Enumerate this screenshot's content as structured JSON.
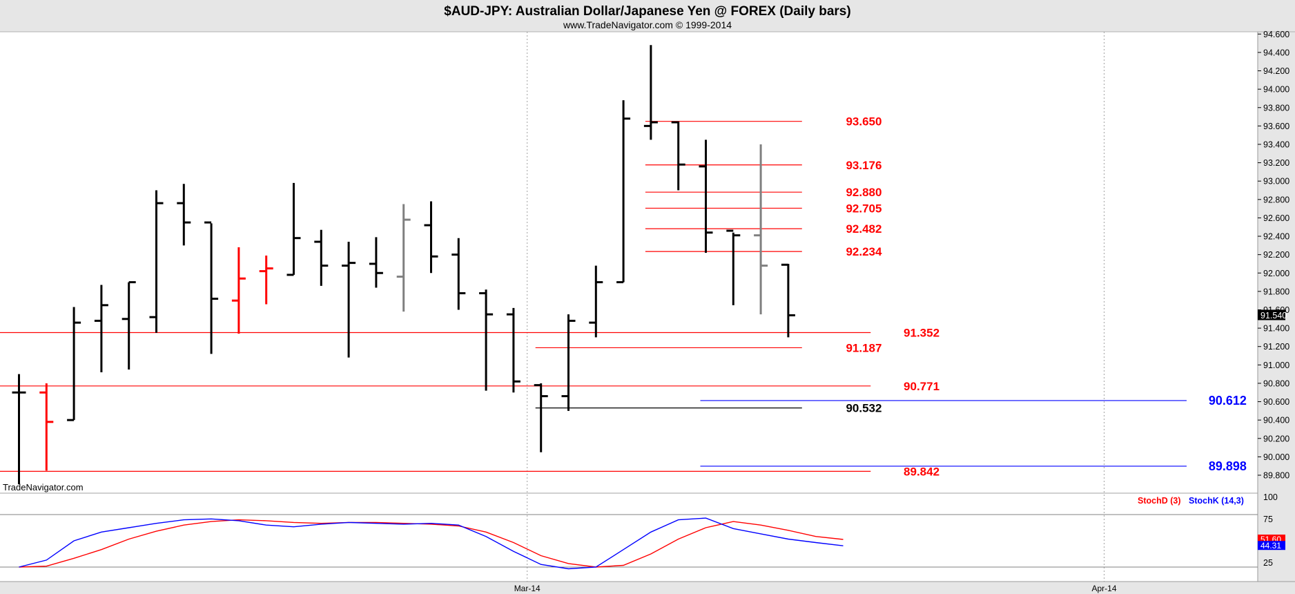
{
  "header": {
    "title": "$AUD-JPY:  Australian Dollar/Japanese Yen @ FOREX  (Daily bars)",
    "subtitle": "www.TradeNavigator.com © 1999-2014"
  },
  "watermark": "TradeNavigator.com",
  "colors": {
    "up_bar": "#000000",
    "red_bar": "#ff0000",
    "gray_bar": "#808080",
    "red_level": "#ff0000",
    "blue_level": "#0000ff",
    "black_level": "#000000",
    "stoch_d": "#ff0000",
    "stoch_k": "#0000ff",
    "axis_bg": "#e6e6e6"
  },
  "chart_data": {
    "type": "ohlc",
    "price_axis": {
      "min": 89.6,
      "max": 94.6,
      "ticks": [
        "94.600",
        "94.400",
        "94.200",
        "94.000",
        "93.800",
        "93.600",
        "93.400",
        "93.200",
        "93.000",
        "92.800",
        "92.600",
        "92.400",
        "92.200",
        "92.000",
        "91.800",
        "91.600",
        "91.400",
        "91.200",
        "91.000",
        "90.800",
        "90.600",
        "90.400",
        "90.200",
        "90.000",
        "89.800"
      ],
      "last_price_label": "91.540"
    },
    "x_axis": {
      "labels": [
        "Mar-14",
        "Apr-14"
      ],
      "label_bar_index": [
        19,
        40
      ]
    },
    "bars": [
      {
        "o": 90.7,
        "h": 90.9,
        "l": 89.7,
        "c": 90.7,
        "color": "black"
      },
      {
        "o": 90.7,
        "h": 90.8,
        "l": 89.85,
        "c": 90.38,
        "color": "red"
      },
      {
        "o": 90.4,
        "h": 91.63,
        "l": 90.4,
        "c": 91.46,
        "color": "black"
      },
      {
        "o": 91.48,
        "h": 91.87,
        "l": 90.92,
        "c": 91.65,
        "color": "black"
      },
      {
        "o": 91.5,
        "h": 91.9,
        "l": 90.95,
        "c": 91.9,
        "color": "black"
      },
      {
        "o": 91.52,
        "h": 92.9,
        "l": 91.35,
        "c": 92.76,
        "color": "black"
      },
      {
        "o": 92.76,
        "h": 92.97,
        "l": 92.3,
        "c": 92.55,
        "color": "black"
      },
      {
        "o": 92.55,
        "h": 92.54,
        "l": 91.12,
        "c": 91.72,
        "color": "black"
      },
      {
        "o": 91.7,
        "h": 92.28,
        "l": 91.34,
        "c": 91.94,
        "color": "red"
      },
      {
        "o": 92.02,
        "h": 92.19,
        "l": 91.66,
        "c": 92.05,
        "color": "red"
      },
      {
        "o": 91.98,
        "h": 92.98,
        "l": 91.98,
        "c": 92.38,
        "color": "black"
      },
      {
        "o": 92.34,
        "h": 92.47,
        "l": 91.86,
        "c": 92.08,
        "color": "black"
      },
      {
        "o": 92.08,
        "h": 92.34,
        "l": 91.08,
        "c": 92.11,
        "color": "black"
      },
      {
        "o": 92.1,
        "h": 92.39,
        "l": 91.84,
        "c": 92.0,
        "color": "black"
      },
      {
        "o": 91.96,
        "h": 92.75,
        "l": 91.58,
        "c": 92.58,
        "color": "gray"
      },
      {
        "o": 92.52,
        "h": 92.78,
        "l": 92.0,
        "c": 92.18,
        "color": "black"
      },
      {
        "o": 92.2,
        "h": 92.38,
        "l": 91.6,
        "c": 91.78,
        "color": "black"
      },
      {
        "o": 91.78,
        "h": 91.82,
        "l": 90.72,
        "c": 91.55,
        "color": "black"
      },
      {
        "o": 91.55,
        "h": 91.62,
        "l": 90.7,
        "c": 90.82,
        "color": "black"
      },
      {
        "o": 90.78,
        "h": 90.8,
        "l": 90.05,
        "c": 90.66,
        "color": "black"
      },
      {
        "o": 90.66,
        "h": 91.55,
        "l": 90.5,
        "c": 91.48,
        "color": "black"
      },
      {
        "o": 91.46,
        "h": 92.08,
        "l": 91.3,
        "c": 91.9,
        "color": "black"
      },
      {
        "o": 91.9,
        "h": 93.88,
        "l": 91.9,
        "c": 93.68,
        "color": "black"
      },
      {
        "o": 93.6,
        "h": 94.48,
        "l": 93.45,
        "c": 93.64,
        "color": "black"
      },
      {
        "o": 93.64,
        "h": 93.65,
        "l": 92.9,
        "c": 93.18,
        "color": "black"
      },
      {
        "o": 93.16,
        "h": 93.45,
        "l": 92.22,
        "c": 92.44,
        "color": "black"
      },
      {
        "o": 92.46,
        "h": 92.44,
        "l": 91.65,
        "c": 92.41,
        "color": "black"
      },
      {
        "o": 92.41,
        "h": 93.4,
        "l": 91.55,
        "c": 92.08,
        "color": "gray"
      },
      {
        "o": 92.09,
        "h": 92.1,
        "l": 91.3,
        "c": 91.54,
        "color": "black"
      }
    ],
    "levels": [
      {
        "value": 93.65,
        "label": "93.650",
        "color": "red",
        "from_bar": 23,
        "to_bar": 28.5,
        "label_bar": 30.1
      },
      {
        "value": 93.176,
        "label": "93.176",
        "color": "red",
        "from_bar": 23,
        "to_bar": 28.5,
        "label_bar": 30.1
      },
      {
        "value": 92.88,
        "label": "92.880",
        "color": "red",
        "from_bar": 23,
        "to_bar": 28.5,
        "label_bar": 30.1
      },
      {
        "value": 92.705,
        "label": "92.705",
        "color": "red",
        "from_bar": 23,
        "to_bar": 28.5,
        "label_bar": 30.1
      },
      {
        "value": 92.482,
        "label": "92.482",
        "color": "red",
        "from_bar": 23,
        "to_bar": 28.5,
        "label_bar": 30.1
      },
      {
        "value": 92.234,
        "label": "92.234",
        "color": "red",
        "from_bar": 23,
        "to_bar": 28.5,
        "label_bar": 30.1
      },
      {
        "value": 91.352,
        "label": "91.352",
        "color": "red",
        "from_bar": -1,
        "to_bar": 31,
        "label_bar": 32.2
      },
      {
        "value": 91.187,
        "label": "91.187",
        "color": "red",
        "from_bar": 19,
        "to_bar": 28.5,
        "label_bar": 30.1
      },
      {
        "value": 90.771,
        "label": "90.771",
        "color": "red",
        "from_bar": -1,
        "to_bar": 31,
        "label_bar": 32.2
      },
      {
        "value": 90.532,
        "label": "90.532",
        "color": "black",
        "from_bar": 19,
        "to_bar": 28.5,
        "label_bar": 30.1
      },
      {
        "value": 90.612,
        "label": "90.612",
        "color": "blue",
        "from_bar": 25,
        "to_bar": 42.5,
        "label_bar": 43.3
      },
      {
        "value": 89.898,
        "label": "89.898",
        "color": "blue",
        "from_bar": 25,
        "to_bar": 42.5,
        "label_bar": 43.3
      },
      {
        "value": 89.842,
        "label": "89.842",
        "color": "red",
        "from_bar": -1,
        "to_bar": 31,
        "label_bar": 32.2
      }
    ],
    "stochastic": {
      "axis_ticks": [
        "100",
        "75",
        "25"
      ],
      "ref_lines": [
        80,
        20
      ],
      "legend": [
        {
          "label": "StochD (3)",
          "color": "red"
        },
        {
          "label": "StochK (14,3)",
          "color": "blue"
        }
      ],
      "d_label": "51.60",
      "k_label": "44.31",
      "d": [
        20,
        21,
        30,
        40,
        52,
        61,
        68,
        72,
        74,
        73,
        71,
        70,
        71,
        71,
        70,
        69,
        67,
        60,
        48,
        33,
        24,
        20,
        22,
        35,
        52,
        65,
        72,
        68,
        62,
        55,
        51.6
      ],
      "k": [
        20,
        28,
        50,
        60,
        65,
        70,
        74,
        75,
        73,
        68,
        66,
        69,
        71,
        70,
        69,
        70,
        68,
        55,
        38,
        23,
        18,
        20,
        40,
        60,
        74,
        76,
        64,
        58,
        52,
        48,
        44.31
      ]
    }
  }
}
